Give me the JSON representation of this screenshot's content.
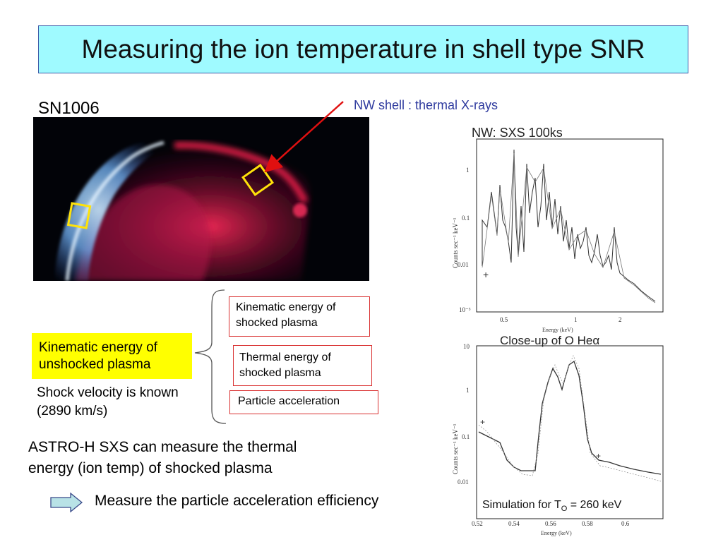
{
  "slide": {
    "title": "Measuring the ion temperature in shell type SNR",
    "image_label": "SN1006",
    "callout": "NW shell : thermal X-rays",
    "boxes": {
      "kinematic_shocked": "Kinematic energy of shocked plasma",
      "thermal_shocked": "Thermal energy of shocked plasma",
      "particle_acceleration": "Particle acceleration",
      "kinematic_unshocked": "Kinematic energy of unshocked plasma"
    },
    "shock_velocity_line1": "Shock velocity is known",
    "shock_velocity_line2": "(2890 km/s)",
    "astro_line1": "ASTRO-H SXS can measure the thermal",
    "astro_line2": "energy (ion temp) of shocked plasma",
    "conclusion": "Measure the particle acceleration efficiency"
  },
  "figure": {
    "top_title": "NW: SXS 100ks",
    "top_y_ticks": [
      "1",
      "0.1",
      "0.01",
      "10⁻³"
    ],
    "top_x_ticks": [
      "0.5",
      "1",
      "2"
    ],
    "top_xlabel": "Energy (keV)",
    "ylabel": "Counts sec⁻¹ keV⁻¹",
    "bottom_title": "Close-up of O Heα",
    "bottom_y_ticks": [
      "10",
      "1",
      "0.1",
      "0.01"
    ],
    "bottom_x_ticks": [
      "0.52",
      "0.54",
      "0.56",
      "0.58",
      "0.6"
    ],
    "bottom_xlabel": "Energy (keV)",
    "simulation_label": "Simulation for T",
    "simulation_sub": "O",
    "simulation_value": " = 260 keV"
  },
  "colors": {
    "title_bg": "#9ffaff",
    "highlight": "#ffff00",
    "callout_text": "#2e3a9e",
    "box_border": "#d93030",
    "pointer_arrow": "#e01010",
    "zoom_lines": "#5b84c0"
  },
  "icons": {
    "conclusion_arrow": "right-block-arrow-icon",
    "brace": "curly-brace-icon"
  }
}
